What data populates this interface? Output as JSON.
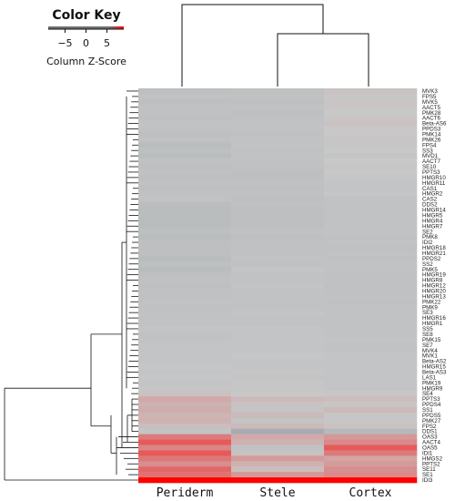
{
  "chart_data": {
    "type": "heatmap",
    "color_key": {
      "title": "Color Key",
      "ticks": [
        -5,
        0,
        5
      ],
      "tick_labels": [
        "−5",
        "0",
        "5"
      ],
      "label": "Column Z-Score",
      "range": [
        -9,
        9
      ],
      "low_color": "#9aa3a8",
      "mid_color": "#c8c8c8",
      "high_color": "#ff0000"
    },
    "columns": [
      "Periderm",
      "Stele",
      "Cortex"
    ],
    "rows": [
      "MVK3",
      "FPS5",
      "MVK5",
      "AACT5",
      "PMK28",
      "AACT6",
      "Beta-AS6",
      "PPDS3",
      "PMK14",
      "PMK26",
      "FPS4",
      "SS3",
      "MVD1",
      "AACT7",
      "SE10",
      "PPTS3",
      "HMGR10",
      "HMGR11",
      "CAS1",
      "HMGR2",
      "CAS2",
      "DDS2",
      "HMGR14",
      "HMGR5",
      "HMGR4",
      "HMGR7",
      "SE2",
      "PMK8",
      "IDI2",
      "HMGR18",
      "HMGR21",
      "PPDS2",
      "SS2",
      "PMK5",
      "HMGR19",
      "HMGR8",
      "HMGR12",
      "HMGR20",
      "HMGR13",
      "PMK22",
      "PMK9",
      "SE3",
      "HMGR16",
      "HMGR1",
      "SS5",
      "SE8",
      "PMK15",
      "SE7",
      "MVK4",
      "MVK1",
      "Beta-AS2",
      "HMGR15",
      "Beta-AS3",
      "LAS1",
      "PMK19",
      "HMGR9",
      "SE4",
      "PPTS3",
      "PPDS4",
      "SS1",
      "PPDS5",
      "PMK27",
      "FPS2",
      "DDS1",
      "OAS3",
      "AACT4",
      "OAS5",
      "IDI1",
      "HMGS2",
      "PPTS2",
      "SE11",
      "SE1",
      "IDI3"
    ],
    "values": [
      [
        -0.5,
        -0.4,
        0.2
      ],
      [
        -0.3,
        -0.4,
        -0.1
      ],
      [
        -0.5,
        -0.5,
        0.1
      ],
      [
        -0.4,
        -0.3,
        0.1
      ],
      [
        -0.4,
        -0.5,
        0.0
      ],
      [
        -0.5,
        -0.4,
        0.1
      ],
      [
        -0.3,
        -0.3,
        0.2
      ],
      [
        -0.4,
        -0.3,
        0.0
      ],
      [
        -0.5,
        -0.4,
        0.0
      ],
      [
        -0.4,
        -0.3,
        0.1
      ],
      [
        -0.6,
        -0.3,
        -0.1
      ],
      [
        -0.5,
        -0.4,
        0.0
      ],
      [
        -0.6,
        -0.3,
        -0.2
      ],
      [
        -0.4,
        -0.4,
        0.0
      ],
      [
        -0.5,
        -0.4,
        -0.1
      ],
      [
        -0.4,
        -0.5,
        0.0
      ],
      [
        -0.5,
        -0.5,
        -0.1
      ],
      [
        -0.4,
        -0.4,
        -0.2
      ],
      [
        -0.5,
        -0.5,
        -0.2
      ],
      [
        -0.4,
        -0.4,
        -0.1
      ],
      [
        -0.3,
        -0.5,
        -0.3
      ],
      [
        -0.6,
        -0.4,
        -0.3
      ],
      [
        -0.6,
        -0.5,
        -0.3
      ],
      [
        -0.6,
        -0.5,
        -0.3
      ],
      [
        -0.6,
        -0.5,
        -0.3
      ],
      [
        -0.6,
        -0.5,
        -0.3
      ],
      [
        -0.5,
        -0.4,
        -0.3
      ],
      [
        -0.6,
        -0.5,
        -0.4
      ],
      [
        -0.5,
        -0.4,
        -0.3
      ],
      [
        -0.5,
        -0.4,
        -0.4
      ],
      [
        -0.5,
        -0.4,
        -0.3
      ],
      [
        -0.6,
        -0.3,
        -0.4
      ],
      [
        -0.5,
        -0.4,
        -0.3
      ],
      [
        -0.6,
        -0.2,
        -0.3
      ],
      [
        -0.5,
        -0.3,
        -0.4
      ],
      [
        -0.4,
        -0.3,
        -0.4
      ],
      [
        -0.5,
        -0.2,
        -0.4
      ],
      [
        -0.4,
        -0.3,
        -0.4
      ],
      [
        -0.4,
        -0.3,
        -0.3
      ],
      [
        -0.3,
        -0.3,
        -0.4
      ],
      [
        -0.4,
        -0.3,
        -0.3
      ],
      [
        -0.3,
        -0.2,
        -0.3
      ],
      [
        -0.3,
        -0.3,
        -0.3
      ],
      [
        -0.3,
        -0.3,
        -0.3
      ],
      [
        -0.2,
        -0.2,
        -0.3
      ],
      [
        -0.3,
        -0.2,
        -0.3
      ],
      [
        -0.3,
        -0.2,
        -0.2
      ],
      [
        -0.2,
        -0.2,
        -0.3
      ],
      [
        -0.2,
        -0.2,
        -0.3
      ],
      [
        -0.2,
        -0.1,
        -0.2
      ],
      [
        -0.2,
        -0.2,
        -0.2
      ],
      [
        -0.1,
        -0.2,
        -0.2
      ],
      [
        -0.2,
        -0.1,
        -0.2
      ],
      [
        -0.1,
        -0.2,
        -0.2
      ],
      [
        -0.2,
        -0.1,
        -0.2
      ],
      [
        -0.1,
        -0.1,
        -0.2
      ],
      [
        0.2,
        0.0,
        0.1
      ],
      [
        0.8,
        0.4,
        0.3
      ],
      [
        0.6,
        0.2,
        0.1
      ],
      [
        0.7,
        -0.2,
        0.4
      ],
      [
        0.5,
        0.4,
        -0.1
      ],
      [
        0.6,
        -0.2,
        -0.1
      ],
      [
        0.3,
        0.4,
        0.2
      ],
      [
        -0.2,
        -1.5,
        -0.8
      ],
      [
        1.8,
        0.8,
        1.2
      ],
      [
        3.2,
        0.6,
        1.5
      ],
      [
        1.6,
        -0.3,
        2.8
      ],
      [
        2.5,
        0.2,
        1.8
      ],
      [
        1.9,
        1.1,
        0.9
      ],
      [
        1.4,
        0.6,
        1.1
      ],
      [
        2.2,
        0.3,
        1.4
      ],
      [
        2.0,
        1.2,
        1.5
      ],
      [
        8.5,
        8.5,
        8.5
      ]
    ]
  }
}
